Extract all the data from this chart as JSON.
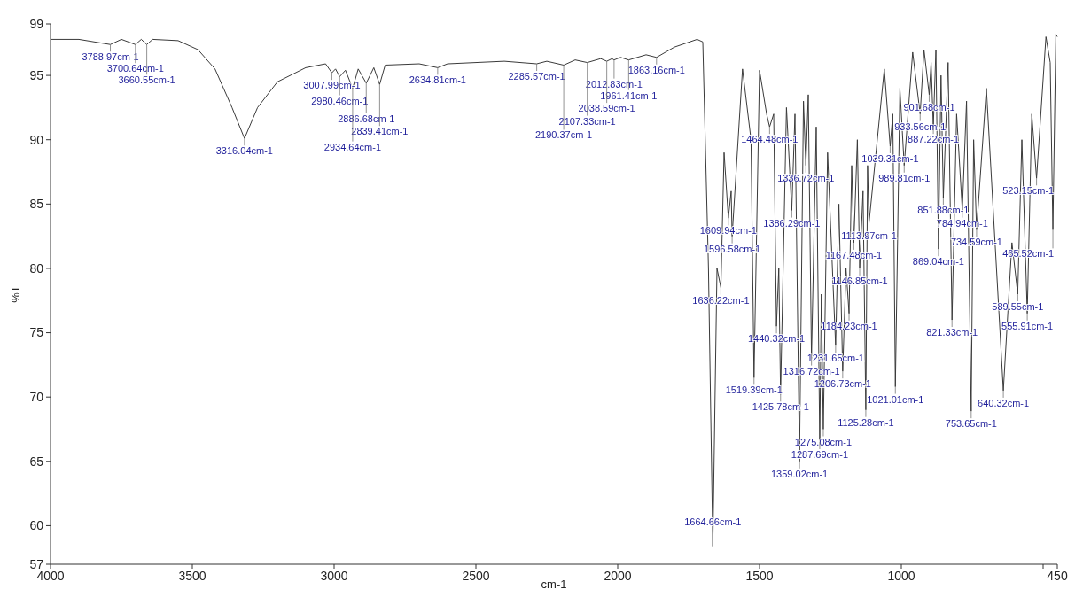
{
  "chart_data": {
    "type": "line",
    "xlabel": "cm-1",
    "ylabel": "%T",
    "xlim": [
      4000,
      450
    ],
    "xticks": [
      4000,
      3500,
      3000,
      2500,
      2000,
      1500,
      1000,
      {
        "value": 500,
        "label": null
      },
      450
    ],
    "ylim": [
      57,
      99
    ],
    "yticks": [
      57,
      60,
      65,
      70,
      75,
      80,
      85,
      90,
      95,
      99
    ],
    "x": [
      4000,
      3900,
      3788.97,
      3750,
      3700.64,
      3680,
      3660.55,
      3640,
      3550,
      3480,
      3420,
      3360,
      3316.04,
      3270,
      3200,
      3100,
      3030,
      3007.99,
      2995,
      2980.46,
      2960,
      2934.64,
      2915,
      2886.68,
      2860,
      2839.41,
      2820,
      2700,
      2634.81,
      2600,
      2400,
      2285.57,
      2250,
      2190.37,
      2150,
      2107.33,
      2060,
      2038.59,
      2020,
      2012.83,
      1990,
      1961.41,
      1900,
      1863.16,
      1800,
      1720,
      1700,
      1680,
      1664.66,
      1650,
      1636.22,
      1625,
      1609.94,
      1600,
      1596.58,
      1560,
      1530,
      1519.39,
      1500,
      1475,
      1464.48,
      1450,
      1440.32,
      1432,
      1425.78,
      1405,
      1386.29,
      1375,
      1359.02,
      1345,
      1336.72,
      1328,
      1316.72,
      1300,
      1287.69,
      1282,
      1275.08,
      1260,
      1231.65,
      1220,
      1206.73,
      1195,
      1184.23,
      1175,
      1167.48,
      1155,
      1146.85,
      1135,
      1125.28,
      1119,
      1113.97,
      1060,
      1039.31,
      1030,
      1021.01,
      1005,
      989.81,
      960,
      933.56,
      920,
      901.68,
      895,
      887.22,
      878,
      869.04,
      860,
      851.88,
      835,
      821.33,
      805,
      784.94,
      770,
      753.65,
      745,
      734.59,
      700,
      640.32,
      610,
      589.55,
      575,
      555.91,
      540,
      523.15,
      490,
      475,
      465.52,
      455,
      450
    ],
    "series": [
      {
        "color": "#3a3a3a",
        "values": [
          97.8,
          97.8,
          97.4,
          97.8,
          97.4,
          97.8,
          97.4,
          97.8,
          97.7,
          97.0,
          95.5,
          92.5,
          90.1,
          92.5,
          94.5,
          95.6,
          95.9,
          95.2,
          95.5,
          94.9,
          95.4,
          94.0,
          95.5,
          94.4,
          95.6,
          94.3,
          95.8,
          95.9,
          95.6,
          95.9,
          96.1,
          95.9,
          96.1,
          95.8,
          96.2,
          96.0,
          96.3,
          96.1,
          96.3,
          96.2,
          96.4,
          96.2,
          96.6,
          96.4,
          97.2,
          97.8,
          97.6,
          80,
          58.4,
          80,
          78.5,
          89,
          83.9,
          86,
          82.5,
          95.5,
          90,
          71.5,
          95.4,
          92,
          91,
          92,
          75.5,
          80,
          70.2,
          92.5,
          84.5,
          92,
          65,
          93,
          88,
          93.5,
          73,
          91,
          66.5,
          78,
          67.5,
          89,
          74,
          85,
          72,
          80,
          76.5,
          88,
          82,
          90,
          80,
          86,
          69,
          88,
          83.5,
          95.5,
          89.5,
          92,
          70.8,
          94,
          88,
          96.8,
          92,
          97,
          93.5,
          96,
          91,
          97,
          81.5,
          95,
          85.5,
          96,
          76,
          92,
          84.5,
          93,
          68.9,
          90,
          83,
          94,
          70.5,
          82,
          78,
          90,
          76.5,
          92,
          87,
          98,
          96,
          83,
          98.2,
          98
        ]
      }
    ],
    "annotations": [
      {
        "text": "3788.97cm-1",
        "x": 3788.97,
        "y": 97.4
      },
      {
        "text": "3700.64cm-1",
        "x": 3700.64,
        "y": 97.4
      },
      {
        "text": "3660.55cm-1",
        "x": 3660.55,
        "y": 97.4
      },
      {
        "text": "3316.04cm-1",
        "x": 3316.04,
        "y": 90.1
      },
      {
        "text": "3007.99cm-1",
        "x": 3007.99,
        "y": 95.2
      },
      {
        "text": "2980.46cm-1",
        "x": 2980.46,
        "y": 94.9
      },
      {
        "text": "2934.64cm-1",
        "x": 2934.64,
        "y": 94.0
      },
      {
        "text": "2886.68cm-1",
        "x": 2886.68,
        "y": 94.4
      },
      {
        "text": "2839.41cm-1",
        "x": 2839.41,
        "y": 94.3
      },
      {
        "text": "2634.81cm-1",
        "x": 2634.81,
        "y": 95.6
      },
      {
        "text": "2285.57cm-1",
        "x": 2285.57,
        "y": 95.9
      },
      {
        "text": "2190.37cm-1",
        "x": 2190.37,
        "y": 95.8
      },
      {
        "text": "2107.33cm-1",
        "x": 2107.33,
        "y": 96.0
      },
      {
        "text": "2038.59cm-1",
        "x": 2038.59,
        "y": 96.1
      },
      {
        "text": "2012.83cm-1",
        "x": 2012.83,
        "y": 96.2
      },
      {
        "text": "1961.41cm-1",
        "x": 1961.41,
        "y": 96.2
      },
      {
        "text": "1863.16cm-1",
        "x": 1863.16,
        "y": 96.4
      },
      {
        "text": "1664.66cm-1",
        "x": 1664.66,
        "y": 58.4
      },
      {
        "text": "1636.22cm-1",
        "x": 1636.22,
        "y": 78.5
      },
      {
        "text": "1609.94cm-1",
        "x": 1609.94,
        "y": 83.9
      },
      {
        "text": "1596.58cm-1",
        "x": 1596.58,
        "y": 82.5
      },
      {
        "text": "1519.39cm-1",
        "x": 1519.39,
        "y": 71.5
      },
      {
        "text": "1464.48cm-1",
        "x": 1464.48,
        "y": 91
      },
      {
        "text": "1440.32cm-1",
        "x": 1440.32,
        "y": 75.5
      },
      {
        "text": "1425.78cm-1",
        "x": 1425.78,
        "y": 70.2
      },
      {
        "text": "1386.29cm-1",
        "x": 1386.29,
        "y": 84.5
      },
      {
        "text": "1359.02cm-1",
        "x": 1359.02,
        "y": 65
      },
      {
        "text": "1336.72cm-1",
        "x": 1336.72,
        "y": 88
      },
      {
        "text": "1316.72cm-1",
        "x": 1316.72,
        "y": 73
      },
      {
        "text": "1287.69cm-1",
        "x": 1287.69,
        "y": 66.5
      },
      {
        "text": "1275.08cm-1",
        "x": 1275.08,
        "y": 67.5
      },
      {
        "text": "1231.65cm-1",
        "x": 1231.65,
        "y": 74
      },
      {
        "text": "1206.73cm-1",
        "x": 1206.73,
        "y": 72
      },
      {
        "text": "1184.23cm-1",
        "x": 1184.23,
        "y": 76.5
      },
      {
        "text": "1167.48cm-1",
        "x": 1167.48,
        "y": 82
      },
      {
        "text": "1146.85cm-1",
        "x": 1146.85,
        "y": 80
      },
      {
        "text": "1125.28cm-1",
        "x": 1125.28,
        "y": 69
      },
      {
        "text": "1113.97cm-1",
        "x": 1113.97,
        "y": 83.5
      },
      {
        "text": "1039.31cm-1",
        "x": 1039.31,
        "y": 89.5
      },
      {
        "text": "1021.01cm-1",
        "x": 1021.01,
        "y": 70.8
      },
      {
        "text": "989.81cm-1",
        "x": 989.81,
        "y": 88
      },
      {
        "text": "933.56cm-1",
        "x": 933.56,
        "y": 92
      },
      {
        "text": "901.68cm-1",
        "x": 901.68,
        "y": 93.5
      },
      {
        "text": "887.22cm-1",
        "x": 887.22,
        "y": 91
      },
      {
        "text": "869.04cm-1",
        "x": 869.04,
        "y": 81.5
      },
      {
        "text": "851.88cm-1",
        "x": 851.88,
        "y": 85.5
      },
      {
        "text": "821.33cm-1",
        "x": 821.33,
        "y": 76
      },
      {
        "text": "784.94cm-1",
        "x": 784.94,
        "y": 84.5
      },
      {
        "text": "753.65cm-1",
        "x": 753.65,
        "y": 68.9
      },
      {
        "text": "734.59cm-1",
        "x": 734.59,
        "y": 83
      },
      {
        "text": "640.32cm-1",
        "x": 640.32,
        "y": 70.5
      },
      {
        "text": "589.55cm-1",
        "x": 589.55,
        "y": 78
      },
      {
        "text": "555.91cm-1",
        "x": 555.91,
        "y": 76.5
      },
      {
        "text": "523.15cm-1",
        "x": 523.15,
        "y": 87
      },
      {
        "text": "465.52cm-1",
        "x": 465.52,
        "y": 83
      }
    ]
  }
}
